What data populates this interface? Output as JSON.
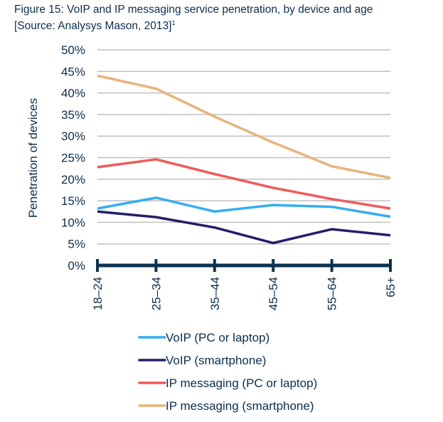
{
  "chart_data": {
    "type": "line",
    "title": "Figure 15: VoIP and IP messaging service penetration, by device and age",
    "source": "[Source: Analysys Mason, 2013]",
    "source_footnote": "1",
    "xlabel": "",
    "ylabel": "Penetration of devices",
    "categories": [
      "18–24",
      "25–34",
      "35–44",
      "45–54",
      "55–64",
      "65+"
    ],
    "ylim": [
      0,
      50
    ],
    "yticks": [
      0,
      5,
      10,
      15,
      20,
      25,
      30,
      35,
      40,
      45,
      50
    ],
    "ytick_labels": [
      "0%",
      "5%",
      "10%",
      "15%",
      "20%",
      "25%",
      "30%",
      "35%",
      "40%",
      "45%",
      "50%"
    ],
    "grid": true,
    "legend_position": "bottom",
    "series": [
      {
        "name": "VoIP (PC or laptop)",
        "color": "#35aef0",
        "values": [
          13.2,
          15.7,
          12.5,
          14.0,
          13.6,
          11.3
        ]
      },
      {
        "name": "VoIP (smartphone)",
        "color": "#231f6b",
        "values": [
          12.5,
          11.2,
          8.8,
          5.2,
          8.4,
          7.0
        ]
      },
      {
        "name": "IP messaging (PC or laptop)",
        "color": "#f05a5a",
        "values": [
          22.8,
          24.6,
          21.2,
          18.0,
          15.4,
          13.2
        ]
      },
      {
        "name": "IP messaging (smartphone)",
        "color": "#e8b47a",
        "values": [
          44.0,
          41.0,
          34.5,
          28.5,
          23.0,
          20.3
        ]
      }
    ]
  }
}
